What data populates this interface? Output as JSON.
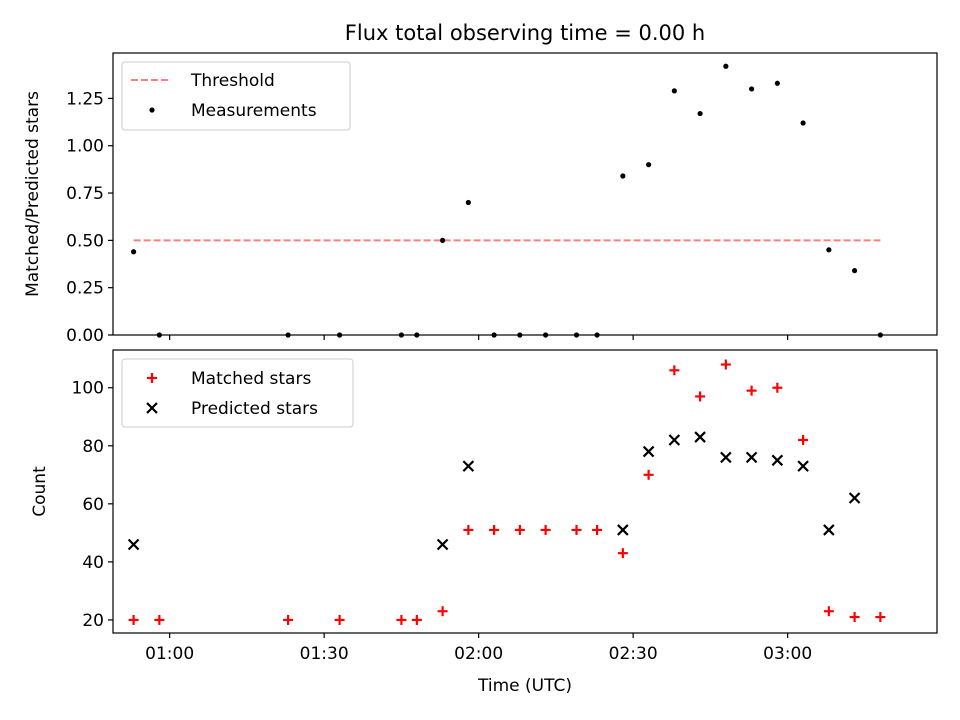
{
  "chart_data": [
    {
      "type": "scatter",
      "title": "Flux total observing time = 0.00 h",
      "ylabel": "Matched/Predicted stars",
      "ylim": [
        0.0,
        1.49
      ],
      "yticks": [
        0.0,
        0.25,
        0.5,
        0.75,
        1.0,
        1.25
      ],
      "ytick_labels": [
        "0.00",
        "0.25",
        "0.50",
        "0.75",
        "1.00",
        "1.25"
      ],
      "xlim": [
        "00:49",
        "03:29"
      ],
      "threshold": {
        "label": "Threshold",
        "value": 0.5,
        "x_range": [
          "00:53",
          "03:18"
        ],
        "color": "#ff7f7f",
        "style": "dashed"
      },
      "series": [
        {
          "name": "Measurements",
          "marker": "dot",
          "color": "#000000",
          "x": [
            "00:53",
            "00:58",
            "01:23",
            "01:33",
            "01:45",
            "01:48",
            "01:53",
            "01:58",
            "02:03",
            "02:08",
            "02:13",
            "02:19",
            "02:23",
            "02:28",
            "02:33",
            "02:38",
            "02:43",
            "02:48",
            "02:53",
            "02:58",
            "03:03",
            "03:08",
            "03:13",
            "03:18"
          ],
          "y": [
            0.44,
            0.0,
            0.0,
            0.0,
            0.0,
            0.0,
            0.5,
            0.7,
            0.0,
            0.0,
            0.0,
            0.0,
            0.0,
            0.84,
            0.9,
            1.29,
            1.17,
            1.42,
            1.3,
            1.33,
            1.12,
            0.45,
            0.34,
            0.0
          ]
        }
      ],
      "legend_position": "upper-left",
      "grid": false
    },
    {
      "type": "scatter",
      "xlabel": "Time (UTC)",
      "ylabel": "Count",
      "ylim": [
        15.5,
        113
      ],
      "yticks": [
        20,
        40,
        60,
        80,
        100
      ],
      "ytick_labels": [
        "20",
        "40",
        "60",
        "80",
        "100"
      ],
      "xlim": [
        "00:49",
        "03:29"
      ],
      "xticks": [
        "01:00",
        "01:30",
        "02:00",
        "02:30",
        "03:00"
      ],
      "series": [
        {
          "name": "Matched stars",
          "marker": "plus",
          "color": "#ff0000",
          "x": [
            "00:53",
            "00:58",
            "01:23",
            "01:33",
            "01:45",
            "01:48",
            "01:53",
            "01:58",
            "02:03",
            "02:08",
            "02:13",
            "02:19",
            "02:23",
            "02:28",
            "02:33",
            "02:38",
            "02:43",
            "02:48",
            "02:53",
            "02:58",
            "03:03",
            "03:08",
            "03:13",
            "03:18"
          ],
          "y": [
            20,
            20,
            20,
            20,
            20,
            20,
            23,
            51,
            51,
            51,
            51,
            51,
            51,
            43,
            70,
            106,
            97,
            108,
            99,
            100,
            82,
            23,
            21,
            21
          ]
        },
        {
          "name": "Predicted stars",
          "marker": "x",
          "color": "#000000",
          "x": [
            "00:53",
            "01:53",
            "01:58",
            "02:28",
            "02:33",
            "02:38",
            "02:43",
            "02:48",
            "02:53",
            "02:58",
            "03:03",
            "03:08",
            "03:13"
          ],
          "y": [
            46,
            46,
            73,
            51,
            78,
            82,
            83,
            76,
            76,
            75,
            73,
            51,
            62
          ]
        }
      ],
      "legend_position": "upper-left",
      "grid": false
    }
  ]
}
